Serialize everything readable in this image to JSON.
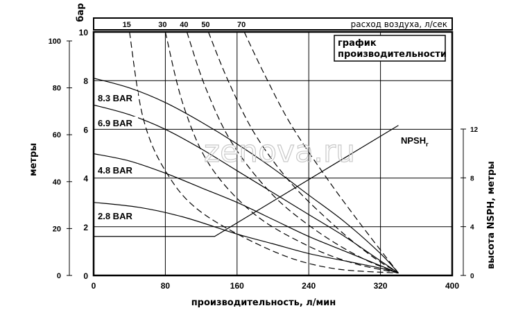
{
  "chart_data": {
    "type": "line",
    "title": "график производительности",
    "xlabel": "производительность, л/мин",
    "ylabel_left_outer": "метры",
    "ylabel_left_inner": "бар",
    "ylabel_right": "высота NSPH, метры",
    "top_axis_label": "расход воздуха, л/сек",
    "watermark": "zenova.ru",
    "xlim": [
      0,
      400
    ],
    "ylim_bar": [
      0,
      10
    ],
    "ylim_meters": [
      0,
      100
    ],
    "ylim_nsph": [
      0,
      12
    ],
    "x_ticks": [
      "0",
      "80",
      "160",
      "240",
      "320",
      "400"
    ],
    "bar_ticks": [
      "0",
      "2",
      "4",
      "6",
      "8",
      "10"
    ],
    "meter_ticks": [
      "0",
      "20",
      "40",
      "60",
      "80",
      "100"
    ],
    "nsph_ticks": [
      "0",
      "4",
      "8",
      "12"
    ],
    "air_ticks": [
      "15",
      "30",
      "40",
      "50",
      "70"
    ],
    "grid": true,
    "series": [
      {
        "name": "8.3 BAR",
        "style": "solid",
        "x": [
          0,
          40,
          80,
          120,
          160,
          200,
          240,
          280,
          320,
          340
        ],
        "y": [
          8.1,
          7.7,
          7.1,
          6.3,
          5.4,
          4.4,
          3.3,
          2.2,
          0.9,
          0.1
        ]
      },
      {
        "name": "6.9 BAR",
        "style": "solid",
        "x": [
          0,
          40,
          80,
          120,
          160,
          200,
          240,
          280,
          320,
          340
        ],
        "y": [
          7.0,
          6.6,
          6.0,
          5.2,
          4.3,
          3.4,
          2.5,
          1.6,
          0.6,
          0.1
        ]
      },
      {
        "name": "4.8 BAR",
        "style": "solid",
        "x": [
          0,
          40,
          80,
          120,
          160,
          200,
          240,
          280,
          320,
          340
        ],
        "y": [
          5.0,
          4.7,
          4.2,
          3.6,
          3.0,
          2.3,
          1.6,
          1.0,
          0.4,
          0.1
        ]
      },
      {
        "name": "2.8 BAR",
        "style": "solid",
        "x": [
          0,
          50,
          100,
          160,
          200,
          240,
          280,
          320,
          340
        ],
        "y": [
          3.0,
          2.8,
          2.4,
          1.7,
          1.3,
          0.9,
          0.6,
          0.3,
          0.1
        ]
      },
      {
        "name": "NPSHr",
        "style": "solid",
        "axis": "nsph",
        "x": [
          0,
          135,
          340
        ],
        "y": [
          3.2,
          3.2,
          12.3
        ]
      },
      {
        "name": "15",
        "style": "dashed",
        "x": [
          40,
          55,
          80,
          120,
          200,
          265,
          340
        ],
        "y": [
          10.0,
          6.5,
          4.3,
          2.6,
          1.0,
          0.3,
          0.1
        ]
      },
      {
        "name": "30",
        "style": "dashed",
        "x": [
          80,
          100,
          130,
          180,
          240,
          290,
          340
        ],
        "y": [
          10.0,
          7.0,
          4.5,
          2.5,
          1.2,
          0.5,
          0.1
        ]
      },
      {
        "name": "40",
        "style": "dashed",
        "x": [
          104,
          125,
          155,
          200,
          250,
          300,
          340
        ],
        "y": [
          10.0,
          7.7,
          5.4,
          3.3,
          1.8,
          0.7,
          0.1
        ]
      },
      {
        "name": "50",
        "style": "dashed",
        "x": [
          128,
          150,
          180,
          220,
          270,
          310,
          340
        ],
        "y": [
          10.0,
          8.0,
          5.8,
          3.8,
          2.0,
          0.8,
          0.1
        ]
      },
      {
        "name": "70",
        "style": "dashed",
        "x": [
          168,
          190,
          220,
          260,
          300,
          340
        ],
        "y": [
          10.0,
          8.3,
          6.2,
          4.0,
          2.0,
          0.1
        ]
      }
    ]
  }
}
